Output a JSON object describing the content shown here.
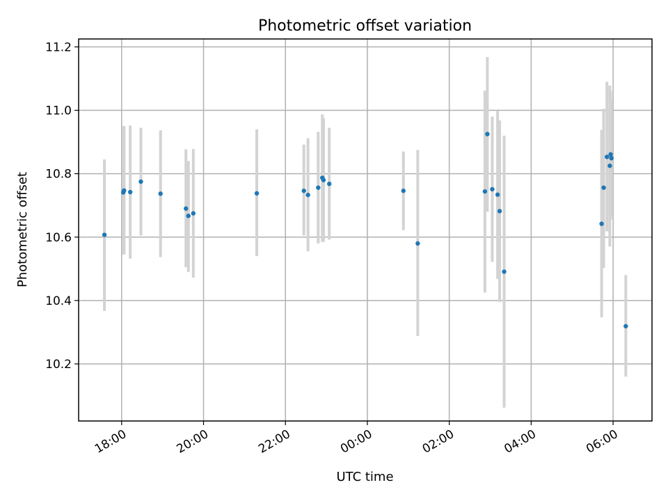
{
  "chart_data": {
    "type": "scatter",
    "title": "Photometric offset variation",
    "xlabel": "UTC time",
    "ylabel": "Photometric offset",
    "xlim_hours": [
      16.95,
      30.95
    ],
    "ylim": [
      10.02,
      11.225
    ],
    "x_ticks": [
      {
        "value": 18,
        "label": "18:00"
      },
      {
        "value": 20,
        "label": "20:00"
      },
      {
        "value": 22,
        "label": "22:00"
      },
      {
        "value": 24,
        "label": "00:00"
      },
      {
        "value": 26,
        "label": "02:00"
      },
      {
        "value": 28,
        "label": "04:00"
      },
      {
        "value": 30,
        "label": "06:00"
      }
    ],
    "y_ticks": [
      {
        "value": 10.2,
        "label": "10.2"
      },
      {
        "value": 10.4,
        "label": "10.4"
      },
      {
        "value": 10.6,
        "label": "10.6"
      },
      {
        "value": 10.8,
        "label": "10.8"
      },
      {
        "value": 11.0,
        "label": "11.0"
      },
      {
        "value": 11.2,
        "label": "11.2"
      }
    ],
    "grid": true,
    "point_color": "#1f77b4",
    "errorbar_color": "#d3d3d3",
    "points": [
      {
        "t": 17.58,
        "y": 10.607,
        "lo": 10.367,
        "hi": 10.845
      },
      {
        "t": 18.04,
        "y": 10.741,
        "lo": 10.545,
        "hi": 10.95
      },
      {
        "t": 18.06,
        "y": 10.747,
        "lo": 10.545,
        "hi": 10.95
      },
      {
        "t": 18.21,
        "y": 10.742,
        "lo": 10.532,
        "hi": 10.952
      },
      {
        "t": 18.47,
        "y": 10.775,
        "lo": 10.605,
        "hi": 10.945
      },
      {
        "t": 18.95,
        "y": 10.737,
        "lo": 10.537,
        "hi": 10.937
      },
      {
        "t": 19.57,
        "y": 10.69,
        "lo": 10.505,
        "hi": 10.877
      },
      {
        "t": 19.63,
        "y": 10.667,
        "lo": 10.49,
        "hi": 10.84
      },
      {
        "t": 19.75,
        "y": 10.675,
        "lo": 10.472,
        "hi": 10.878
      },
      {
        "t": 21.3,
        "y": 10.738,
        "lo": 10.54,
        "hi": 10.94
      },
      {
        "t": 22.45,
        "y": 10.746,
        "lo": 10.605,
        "hi": 10.892
      },
      {
        "t": 22.55,
        "y": 10.733,
        "lo": 10.555,
        "hi": 10.912
      },
      {
        "t": 22.8,
        "y": 10.756,
        "lo": 10.58,
        "hi": 10.932
      },
      {
        "t": 22.9,
        "y": 10.787,
        "lo": 10.585,
        "hi": 10.987
      },
      {
        "t": 22.93,
        "y": 10.78,
        "lo": 10.585,
        "hi": 10.975
      },
      {
        "t": 23.07,
        "y": 10.768,
        "lo": 10.592,
        "hi": 10.945
      },
      {
        "t": 24.88,
        "y": 10.746,
        "lo": 10.622,
        "hi": 10.87
      },
      {
        "t": 25.23,
        "y": 10.58,
        "lo": 10.288,
        "hi": 10.875
      },
      {
        "t": 26.87,
        "y": 10.744,
        "lo": 10.425,
        "hi": 11.062
      },
      {
        "t": 26.93,
        "y": 10.925,
        "lo": 10.68,
        "hi": 11.168
      },
      {
        "t": 27.05,
        "y": 10.751,
        "lo": 10.522,
        "hi": 10.98
      },
      {
        "t": 27.18,
        "y": 10.734,
        "lo": 10.468,
        "hi": 10.998
      },
      {
        "t": 27.23,
        "y": 10.682,
        "lo": 10.395,
        "hi": 10.968
      },
      {
        "t": 27.34,
        "y": 10.491,
        "lo": 10.062,
        "hi": 10.92
      },
      {
        "t": 29.72,
        "y": 10.642,
        "lo": 10.347,
        "hi": 10.938
      },
      {
        "t": 29.77,
        "y": 10.756,
        "lo": 10.503,
        "hi": 11.005
      },
      {
        "t": 29.85,
        "y": 10.853,
        "lo": 10.618,
        "hi": 11.09
      },
      {
        "t": 29.92,
        "y": 10.825,
        "lo": 10.57,
        "hi": 11.078
      },
      {
        "t": 29.94,
        "y": 10.861,
        "lo": 10.655,
        "hi": 11.062
      },
      {
        "t": 29.96,
        "y": 10.849,
        "lo": 10.665,
        "hi": 11.035
      },
      {
        "t": 30.31,
        "y": 10.319,
        "lo": 10.16,
        "hi": 10.48
      }
    ]
  }
}
